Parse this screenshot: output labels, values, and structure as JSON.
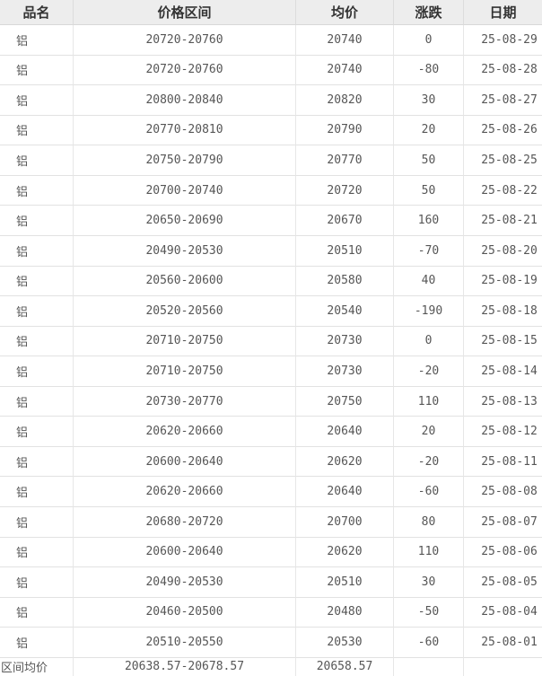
{
  "table": {
    "columns": [
      "品名",
      "价格区间",
      "均价",
      "涨跌",
      "日期"
    ],
    "column_keys": [
      "product",
      "price-range",
      "avg-price",
      "change",
      "date"
    ],
    "rows": [
      [
        "铝",
        "20720-20760",
        "20740",
        "0",
        "25-08-29"
      ],
      [
        "铝",
        "20720-20760",
        "20740",
        "-80",
        "25-08-28"
      ],
      [
        "铝",
        "20800-20840",
        "20820",
        "30",
        "25-08-27"
      ],
      [
        "铝",
        "20770-20810",
        "20790",
        "20",
        "25-08-26"
      ],
      [
        "铝",
        "20750-20790",
        "20770",
        "50",
        "25-08-25"
      ],
      [
        "铝",
        "20700-20740",
        "20720",
        "50",
        "25-08-22"
      ],
      [
        "铝",
        "20650-20690",
        "20670",
        "160",
        "25-08-21"
      ],
      [
        "铝",
        "20490-20530",
        "20510",
        "-70",
        "25-08-20"
      ],
      [
        "铝",
        "20560-20600",
        "20580",
        "40",
        "25-08-19"
      ],
      [
        "铝",
        "20520-20560",
        "20540",
        "-190",
        "25-08-18"
      ],
      [
        "铝",
        "20710-20750",
        "20730",
        "0",
        "25-08-15"
      ],
      [
        "铝",
        "20710-20750",
        "20730",
        "-20",
        "25-08-14"
      ],
      [
        "铝",
        "20730-20770",
        "20750",
        "110",
        "25-08-13"
      ],
      [
        "铝",
        "20620-20660",
        "20640",
        "20",
        "25-08-12"
      ],
      [
        "铝",
        "20600-20640",
        "20620",
        "-20",
        "25-08-11"
      ],
      [
        "铝",
        "20620-20660",
        "20640",
        "-60",
        "25-08-08"
      ],
      [
        "铝",
        "20680-20720",
        "20700",
        "80",
        "25-08-07"
      ],
      [
        "铝",
        "20600-20640",
        "20620",
        "110",
        "25-08-06"
      ],
      [
        "铝",
        "20490-20530",
        "20510",
        "30",
        "25-08-05"
      ],
      [
        "铝",
        "20460-20500",
        "20480",
        "-50",
        "25-08-04"
      ],
      [
        "铝",
        "20510-20550",
        "20530",
        "-60",
        "25-08-01"
      ]
    ],
    "footer": [
      "区间均价",
      "20638.57-20678.57",
      "20658.57",
      "",
      ""
    ]
  },
  "colors": {
    "header_bg": "#ededed",
    "header_text": "#333333",
    "cell_text": "#565656",
    "row_border": "#e2e2e2",
    "column_border": "#e7e7e7"
  }
}
